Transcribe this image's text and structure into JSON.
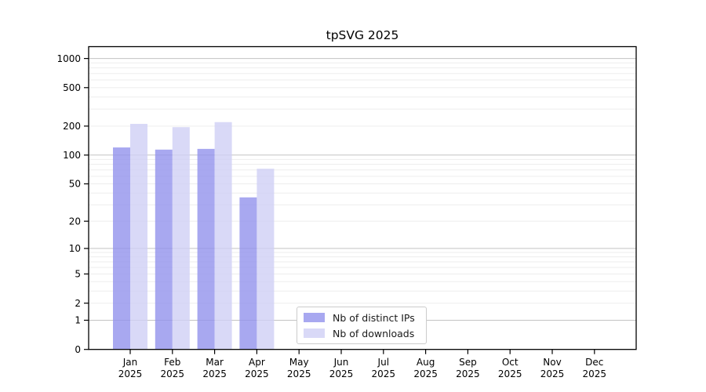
{
  "chart_data": {
    "type": "bar",
    "title": "tpSVG 2025",
    "categories": [
      "Jan",
      "Feb",
      "Mar",
      "Apr",
      "May",
      "Jun",
      "Jul",
      "Aug",
      "Sep",
      "Oct",
      "Nov",
      "Dec"
    ],
    "category_year": "2025",
    "series": [
      {
        "name": "Nb of distinct IPs",
        "color": "#9292ec",
        "fill_opacity": 0.8,
        "values": [
          120,
          114,
          116,
          36,
          null,
          null,
          null,
          null,
          null,
          null,
          null,
          null
        ]
      },
      {
        "name": "Nb of downloads",
        "color": "#cfcff5",
        "fill_opacity": 0.8,
        "values": [
          211,
          195,
          220,
          72,
          null,
          null,
          null,
          null,
          null,
          null,
          null,
          null
        ]
      }
    ],
    "y_ticks": [
      0,
      1,
      2,
      5,
      10,
      20,
      50,
      100,
      200,
      500,
      1000
    ],
    "y_scale": "symlog ln(1+v)",
    "ylim": [
      0,
      1340
    ],
    "xlabel": "",
    "ylabel": "",
    "grid": {
      "major_color": "#c3c3c3",
      "minor_color": "#ededed"
    },
    "legend_position": "bottom-center"
  },
  "colors": {
    "axis": "#000000",
    "text": "#000000",
    "background": "#ffffff",
    "legend_border": "#cccccc"
  }
}
